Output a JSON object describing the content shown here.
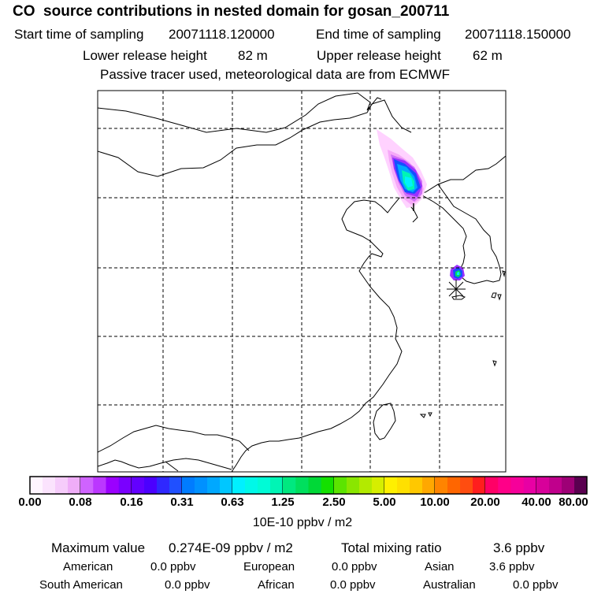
{
  "header": {
    "title": "CO  source contributions in nested domain for gosan_200711",
    "start_label": "Start time of sampling",
    "start_value": "20071118.120000",
    "end_label": "End time of sampling",
    "end_value": "20071118.150000",
    "lower_label": "Lower release height",
    "lower_value": "82 m",
    "upper_label": "Upper release height",
    "upper_value": "62 m",
    "tracer_note": "Passive tracer used, meteorological data are from ECMWF"
  },
  "colorbar": {
    "tick_labels": [
      "0.00",
      "0.08",
      "0.16",
      "0.31",
      "0.63",
      "1.25",
      "2.50",
      "5.00",
      "10.00",
      "20.00",
      "40.00",
      "80.00"
    ],
    "unit_label": "10E-10 ppbv / m2",
    "colors": [
      [
        "#fff5ff",
        "#fbe3fd",
        "#f6ccfb",
        "#efadf8"
      ],
      [
        "#cf63ff",
        "#bb37ff",
        "#9b00ff",
        "#7a00ff"
      ],
      [
        "#6300ff",
        "#4b00ff",
        "#2f28ff",
        "#2050ff"
      ],
      [
        "#007cff",
        "#0091ff",
        "#00a8ff",
        "#00c7ff"
      ],
      [
        "#00f0ff",
        "#00f8e8",
        "#00fbd6",
        "#00f5b5"
      ],
      [
        "#00e880",
        "#00df5e",
        "#00d837",
        "#14e000"
      ],
      [
        "#5ce400",
        "#8ae600",
        "#b3ea00",
        "#d6ee00"
      ],
      [
        "#fff000",
        "#ffe000",
        "#ffc800",
        "#ffa800"
      ],
      [
        "#ff8400",
        "#ff6600",
        "#ff4d10",
        "#ff1e1e"
      ],
      [
        "#ff0066",
        "#ff0088",
        "#f6009a",
        "#e800a4"
      ],
      [
        "#d8009a",
        "#c0008c",
        "#9e0076",
        "#5a0050"
      ]
    ]
  },
  "map": {
    "plume_colors": {
      "light_pink": "#ffd2ff",
      "pink": "#f6a8f8",
      "magenta": "#d070f6",
      "purple": "#9a30ff",
      "blue": "#1450ff",
      "aqua_blue": "#00a8ff",
      "cyan": "#00f0ff",
      "teal": "#00f5b5",
      "green": "#00df5e"
    }
  },
  "summary": {
    "max_label": "Maximum value",
    "max_value": "0.274E-09 ppbv / m2",
    "total_label": "Total mixing ratio",
    "total_value": "3.6 ppbv",
    "sources": [
      {
        "name": "American",
        "value": "0.0 ppbv"
      },
      {
        "name": "European",
        "value": "0.0 ppbv"
      },
      {
        "name": "Asian",
        "value": "3.6 ppbv"
      },
      {
        "name": "South American",
        "value": "0.0 ppbv"
      },
      {
        "name": "African",
        "value": "0.0 ppbv"
      },
      {
        "name": "Australian",
        "value": "0.0 ppbv"
      }
    ]
  }
}
